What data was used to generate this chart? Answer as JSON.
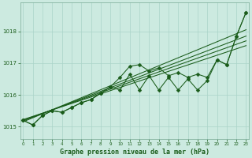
{
  "title": "Graphe pression niveau de la mer (hPa)",
  "bg_color": "#cceae0",
  "grid_color": "#aad4c8",
  "line_color": "#1a5c1a",
  "ylim": [
    1014.6,
    1018.9
  ],
  "xlim": [
    -0.3,
    23.3
  ],
  "yticks": [
    1015,
    1016,
    1017,
    1018
  ],
  "xticks": [
    0,
    1,
    2,
    3,
    4,
    5,
    6,
    7,
    8,
    9,
    10,
    11,
    12,
    13,
    14,
    15,
    16,
    17,
    18,
    19,
    20,
    21,
    22,
    23
  ],
  "main_series": [
    1015.2,
    1015.05,
    1015.35,
    1015.5,
    1015.45,
    1015.6,
    1015.75,
    1015.85,
    1016.05,
    1016.25,
    1016.55,
    1016.9,
    1016.95,
    1016.75,
    1016.85,
    1016.6,
    1016.7,
    1016.55,
    1016.65,
    1016.55,
    1017.1,
    1016.95,
    1017.85,
    1018.6
  ],
  "zigzag_series": [
    1015.2,
    1015.05,
    1015.35,
    1015.5,
    1015.45,
    1015.6,
    1015.75,
    1015.85,
    1016.05,
    1016.25,
    1016.15,
    1016.65,
    1016.15,
    1016.6,
    1016.15,
    1016.55,
    1016.15,
    1016.5,
    1016.15,
    1016.45,
    1017.1,
    1016.95,
    1017.85,
    1018.6
  ],
  "trend_lines": [
    {
      "x0": 0,
      "y0": 1015.15,
      "x1": 23,
      "y1": 1018.05
    },
    {
      "x0": 0,
      "y0": 1015.18,
      "x1": 23,
      "y1": 1017.85
    },
    {
      "x0": 0,
      "y0": 1015.2,
      "x1": 23,
      "y1": 1017.7
    },
    {
      "x0": 0,
      "y0": 1015.22,
      "x1": 23,
      "y1": 1017.55
    }
  ],
  "marker": "D",
  "markersize": 2.5,
  "linewidth": 0.75,
  "trend_linewidth": 0.75
}
